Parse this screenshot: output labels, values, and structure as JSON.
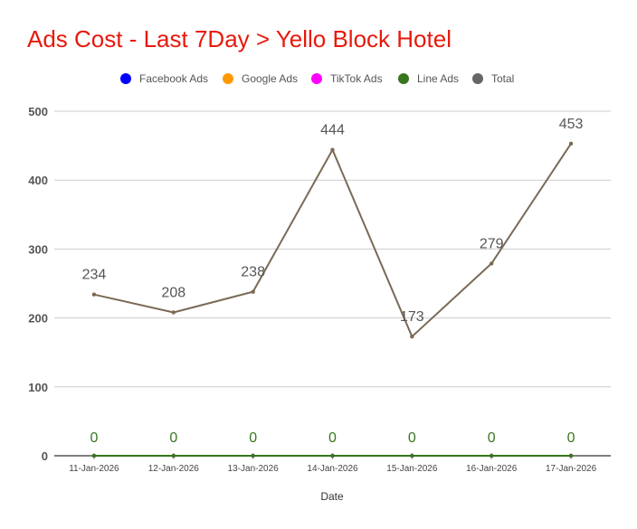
{
  "title": "Ads Cost - Last 7Day > Yello Block Hotel",
  "chart_data": {
    "type": "line",
    "title": "Ads Cost - Last 7Day > Yello Block Hotel",
    "xlabel": "Date",
    "ylabel": "",
    "categories": [
      "11-Jan-2026",
      "12-Jan-2026",
      "13-Jan-2026",
      "14-Jan-2026",
      "15-Jan-2026",
      "16-Jan-2026",
      "17-Jan-2026"
    ],
    "ylim": [
      0,
      500
    ],
    "yticks": [
      "0",
      "100",
      "200",
      "300",
      "400",
      "500"
    ],
    "grid": true,
    "legend_position": "top",
    "series": [
      {
        "name": "Facebook Ads",
        "color": "#0000ff",
        "values": [
          0,
          0,
          0,
          0,
          0,
          0,
          0
        ],
        "labels": []
      },
      {
        "name": "Google Ads",
        "color": "#ff9900",
        "values": [
          0,
          0,
          0,
          0,
          0,
          0,
          0
        ],
        "labels": []
      },
      {
        "name": "TikTok Ads",
        "color": "#ff00ff",
        "values": [
          0,
          0,
          0,
          0,
          0,
          0,
          0
        ],
        "labels": []
      },
      {
        "name": "Line Ads",
        "color": "#38761d",
        "values": [
          0,
          0,
          0,
          0,
          0,
          0,
          0
        ],
        "labels": [
          "0",
          "0",
          "0",
          "0",
          "0",
          "0",
          "0"
        ]
      },
      {
        "name": "Total",
        "color": "#666666",
        "line_color": "#7a6a55",
        "values": [
          234,
          208,
          238,
          444,
          173,
          279,
          453
        ],
        "labels": [
          "234",
          "208",
          "238",
          "444",
          "173",
          "279",
          "453"
        ]
      }
    ]
  }
}
